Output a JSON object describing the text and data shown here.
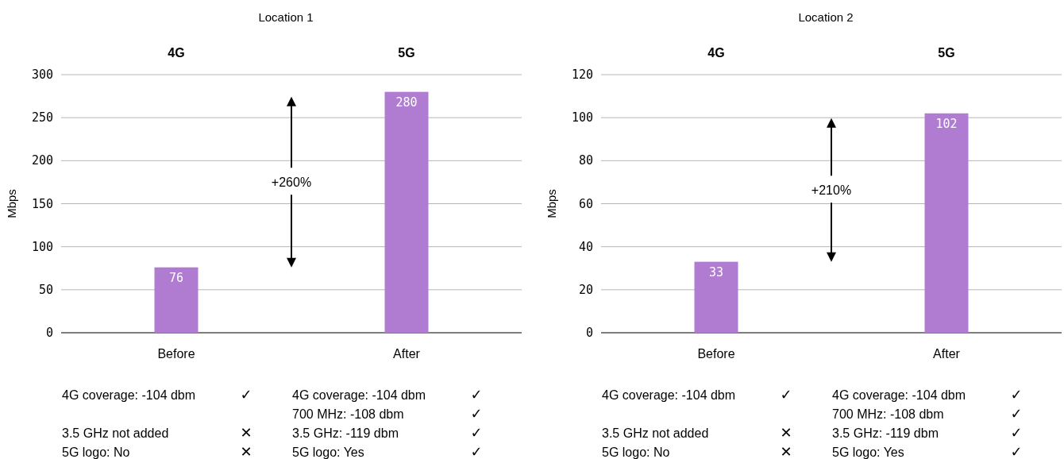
{
  "chart_data": [
    {
      "type": "bar",
      "title": "Location 1",
      "ylabel": "Mbps",
      "categories": [
        "Before",
        "After"
      ],
      "values": [
        76,
        280
      ],
      "color": "#b07cd2",
      "data_labels": true,
      "ylim": [
        0,
        300
      ],
      "yticks": [
        0,
        50,
        100,
        150,
        200,
        250,
        300
      ],
      "grid": "y",
      "annotations": [
        "4G",
        "5G",
        "+260%",
        "4G coverage: -104 dbm\t✓",
        "3.5 GHz not added\t✕",
        "5G logo: No\t✕",
        "4G coverage: -104 dbm\t✓",
        "700 MHz: -108 dbm\t✓",
        "3.5 GHz: -119 dbm\t✓",
        "5G logo: Yes\t✓"
      ]
    },
    {
      "type": "bar",
      "title": "Location 2",
      "ylabel": "Mbps",
      "categories": [
        "Before",
        "After"
      ],
      "values": [
        33,
        102
      ],
      "color": "#b07cd2",
      "data_labels": true,
      "ylim": [
        0,
        120
      ],
      "yticks": [
        0,
        20,
        40,
        60,
        80,
        100,
        120
      ],
      "grid": "y",
      "annotations": [
        "4G",
        "5G",
        "+210%",
        "4G coverage: -104 dbm\t✓",
        "3.5 GHz not added\t✕",
        "5G logo: No\t✕",
        "4G coverage: -104 dbm\t✓",
        "700 MHz: -108 dbm\t✓",
        "3.5 GHz: -119 dbm\t✓",
        "5G logo: Yes\t✓"
      ]
    }
  ]
}
